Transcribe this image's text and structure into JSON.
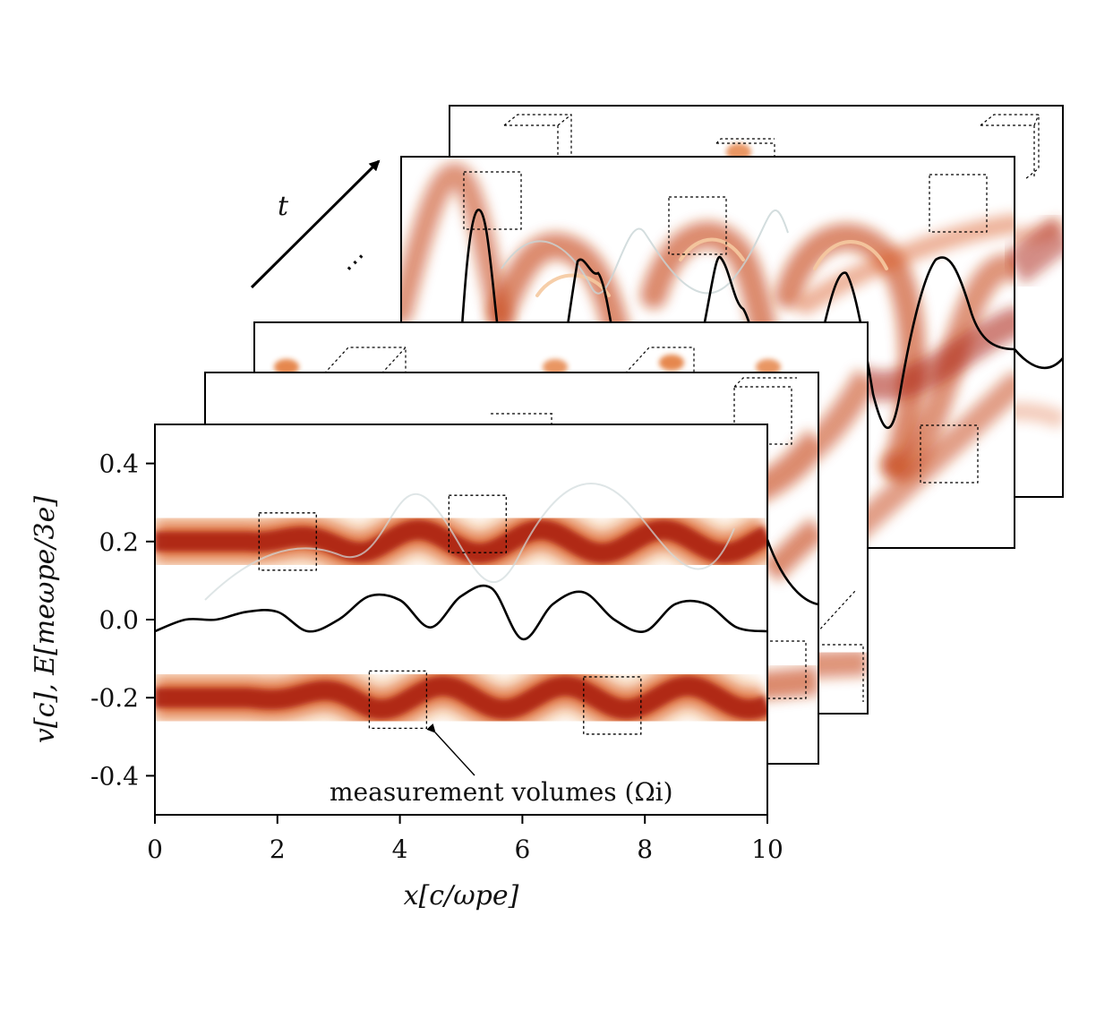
{
  "chart_data": {
    "type": "heatmap",
    "title": "",
    "xlabel": "x[c/ωpe]",
    "ylabel": "v[c], E[meωpe/3e]",
    "xlim": [
      0,
      10
    ],
    "ylim": [
      -0.5,
      0.5
    ],
    "x_ticks": [
      "0",
      "2",
      "4",
      "6",
      "8",
      "10"
    ],
    "y_ticks": [
      "0.4",
      "0.2",
      "0.0",
      "-0.2",
      "-0.4"
    ],
    "time_axis_label": "t",
    "ellipsis": "⋯",
    "annotation": "measurement volumes (Ωi)",
    "beam_velocities": [
      0.2,
      -0.2
    ],
    "colormap": "white-orange-darkred",
    "frames_shown": 5,
    "front_frame_field": {
      "x": [
        0,
        0.5,
        1,
        1.5,
        2,
        2.5,
        3,
        3.5,
        4,
        4.5,
        5,
        5.5,
        6,
        6.5,
        7,
        7.5,
        8,
        8.5,
        9,
        9.5,
        10
      ],
      "E": [
        -0.03,
        0.0,
        0.0,
        0.02,
        0.02,
        -0.03,
        0.0,
        0.06,
        0.05,
        -0.02,
        0.06,
        0.08,
        -0.05,
        0.04,
        0.07,
        0.0,
        -0.03,
        0.04,
        0.04,
        -0.02,
        -0.03
      ]
    },
    "measurement_volumes_front": [
      {
        "x": 1.7,
        "v": 0.2
      },
      {
        "x": 3.5,
        "v": -0.205
      },
      {
        "x": 4.8,
        "v": 0.245
      },
      {
        "x": 7.0,
        "v": -0.22
      }
    ]
  },
  "colors": {
    "beam_core": "#a81e08",
    "beam_mid": "#d8541a",
    "beam_edge": "#f5c9a0",
    "field_line": "#000000",
    "frame_border": "#000000"
  }
}
